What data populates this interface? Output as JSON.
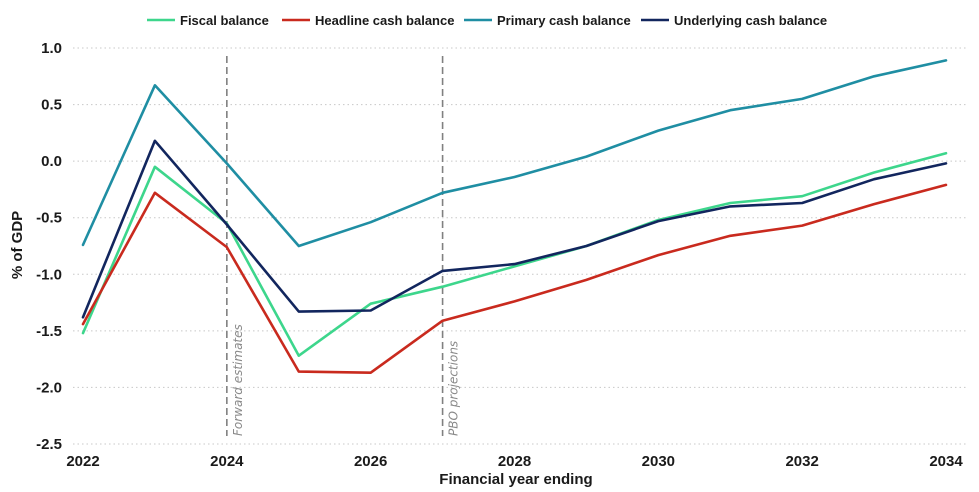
{
  "chart_data": {
    "type": "line",
    "title": "",
    "xlabel": "Financial year ending",
    "ylabel": "% of GDP",
    "xlim": [
      2022,
      2034
    ],
    "ylim": [
      -2.5,
      1.0
    ],
    "x_ticks": [
      "2022",
      "2024",
      "2026",
      "2028",
      "2030",
      "2032",
      "2034"
    ],
    "y_ticks": [
      "1.0",
      "0.5",
      "0.0",
      "-0.5",
      "-1.0",
      "-1.5",
      "-2.0",
      "-2.5"
    ],
    "grid": "horizontal dotted",
    "legend_position": "top",
    "x": [
      2022,
      2023,
      2024,
      2025,
      2026,
      2027,
      2028,
      2029,
      2030,
      2031,
      2032,
      2033,
      2034
    ],
    "series": [
      {
        "name": "Fiscal balance",
        "color": "#3dd68c",
        "values": [
          -1.52,
          -0.05,
          -0.55,
          -1.72,
          -1.26,
          -1.11,
          -0.93,
          -0.75,
          -0.52,
          -0.37,
          -0.31,
          -0.1,
          0.07
        ]
      },
      {
        "name": "Headline cash balance",
        "color": "#c92a1e",
        "values": [
          -1.44,
          -0.28,
          -0.76,
          -1.86,
          -1.87,
          -1.41,
          -1.24,
          -1.05,
          -0.83,
          -0.66,
          -0.57,
          -0.38,
          -0.21
        ]
      },
      {
        "name": "Primary cash balance",
        "color": "#1f8ea3",
        "values": [
          -0.74,
          0.67,
          -0.02,
          -0.75,
          -0.54,
          -0.28,
          -0.14,
          0.04,
          0.27,
          0.45,
          0.55,
          0.75,
          0.89
        ]
      },
      {
        "name": "Underlying cash balance",
        "color": "#12265e",
        "values": [
          -1.38,
          0.18,
          -0.56,
          -1.33,
          -1.32,
          -0.97,
          -0.91,
          -0.75,
          -0.53,
          -0.4,
          -0.37,
          -0.16,
          -0.02
        ]
      }
    ],
    "annotations": [
      {
        "text": "Forward estimates",
        "x": 2024
      },
      {
        "text": "PBO projections",
        "x": 2027
      }
    ]
  }
}
